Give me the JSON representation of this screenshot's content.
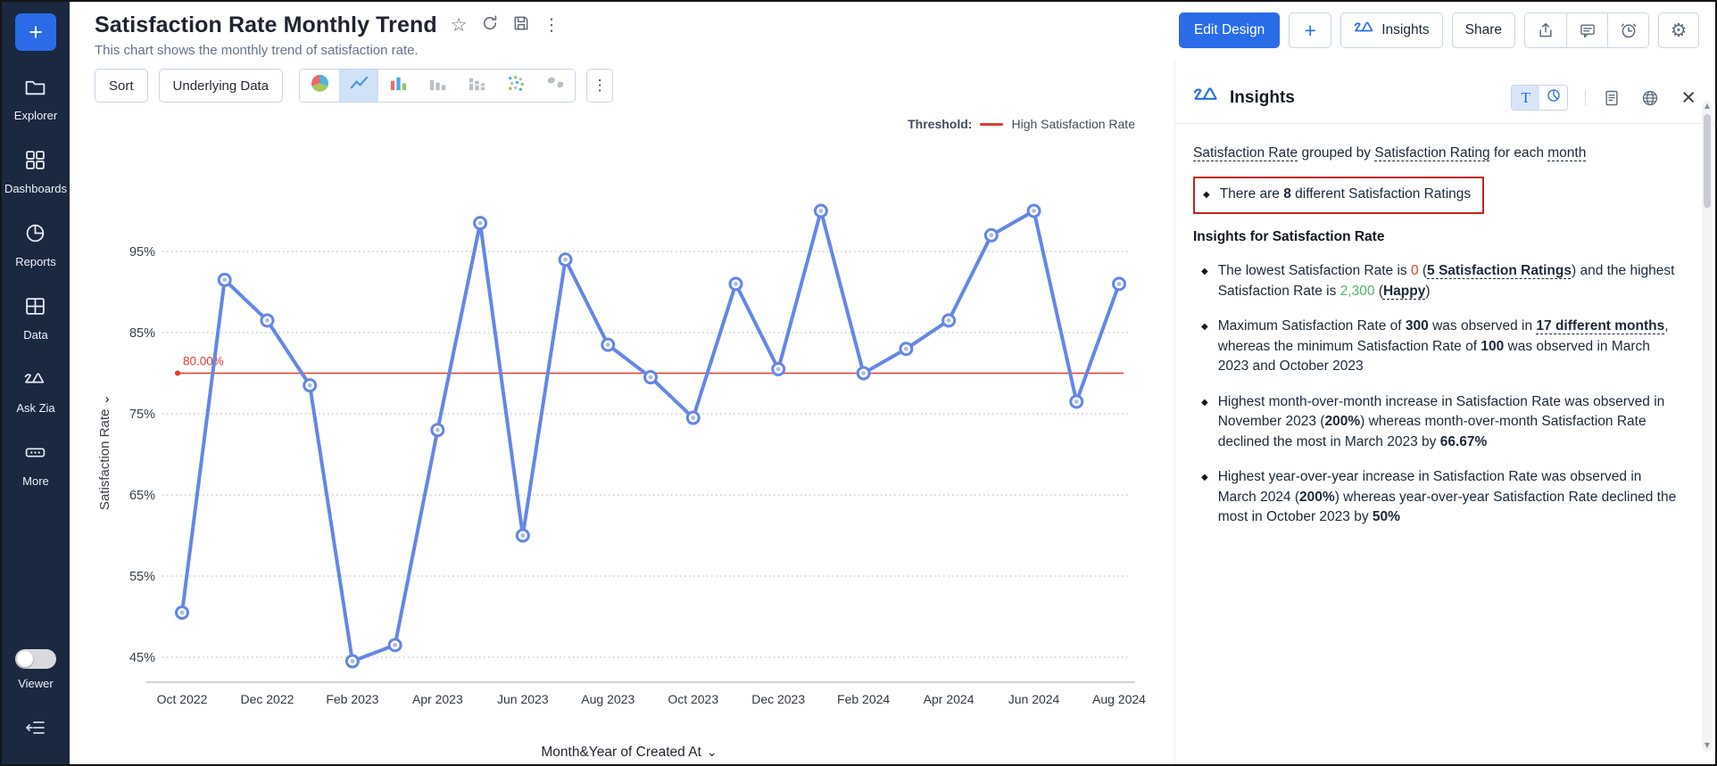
{
  "header": {
    "title": "Satisfaction Rate Monthly Trend",
    "subtitle": "This chart shows the monthly trend of satisfaction rate.",
    "title_icons": [
      "star-icon",
      "refresh-icon",
      "save-icon",
      "kebab-menu-icon"
    ]
  },
  "actions": {
    "edit_design": "Edit Design",
    "add": "+",
    "insights": "Insights",
    "share": "Share",
    "icon_buttons": [
      "export-icon",
      "comment-icon",
      "alarm-icon",
      "gear-icon"
    ]
  },
  "toolbar": {
    "sort": "Sort",
    "underlying_data": "Underlying Data",
    "chart_types": [
      {
        "icon": "pie-chart-icon",
        "selected": false
      },
      {
        "icon": "line-chart-icon",
        "selected": true
      },
      {
        "icon": "bar-chart-color-icon",
        "selected": false
      },
      {
        "icon": "bar-chart-gray-icon",
        "selected": false
      },
      {
        "icon": "stacked-bar-icon",
        "selected": false
      },
      {
        "icon": "scatter-plot-icon",
        "selected": false
      },
      {
        "icon": "map-chart-icon",
        "selected": false
      }
    ],
    "more": "⋮"
  },
  "sidebar": {
    "items": [
      {
        "icon": "folder-icon",
        "label": "Explorer"
      },
      {
        "icon": "dashboards-icon",
        "label": "Dashboards"
      },
      {
        "icon": "reports-icon",
        "label": "Reports"
      },
      {
        "icon": "data-table-icon",
        "label": "Data"
      },
      {
        "icon": "zia-icon",
        "label": "Ask Zia"
      },
      {
        "icon": "more-icon",
        "label": "More"
      }
    ],
    "viewer_label": "Viewer"
  },
  "chart_data": {
    "type": "line",
    "title": "Satisfaction Rate Monthly Trend",
    "x": [
      "Oct 2022",
      "Nov 2022",
      "Dec 2022",
      "Jan 2023",
      "Feb 2023",
      "Mar 2023",
      "Apr 2023",
      "May 2023",
      "Jun 2023",
      "Jul 2023",
      "Aug 2023",
      "Sep 2023",
      "Oct 2023",
      "Nov 2023",
      "Dec 2023",
      "Jan 2024",
      "Feb 2024",
      "Mar 2024",
      "Apr 2024",
      "May 2024",
      "Jun 2024",
      "Jul 2024",
      "Aug 2024"
    ],
    "series": [
      {
        "name": "Satisfaction Rate",
        "values": [
          50.5,
          91.5,
          86.5,
          78.5,
          44.5,
          46.5,
          73,
          98.5,
          60,
          94,
          83.5,
          79.5,
          74.5,
          91,
          80.5,
          100,
          80,
          83,
          86.5,
          97,
          100,
          76.5,
          91
        ]
      }
    ],
    "xlabel": "Month&Year of Created At",
    "ylabel": "Satisfaction Rate",
    "y_ticks": [
      45,
      55,
      65,
      75,
      85,
      95
    ],
    "y_tick_suffix": "%",
    "ylim": [
      41,
      103
    ],
    "x_tick_step": 2,
    "grid": "dotted-horizontal",
    "legend_position": "top-right",
    "line_color": "#6487e7",
    "threshold": {
      "label": "Threshold:",
      "name": "High Satisfaction Rate",
      "value": 80,
      "value_label": "80.00%",
      "color": "#e23b33"
    }
  },
  "insights_panel": {
    "title": "Insights",
    "summary_segments": [
      {
        "t": "Satisfaction Rate",
        "s": "u"
      },
      {
        "t": " grouped by ",
        "s": "p"
      },
      {
        "t": "Satisfaction Rating",
        "s": "u"
      },
      {
        "t": " for each ",
        "s": "p"
      },
      {
        "t": "month",
        "s": "u"
      }
    ],
    "highlight_bullet": [
      {
        "t": "There are ",
        "s": "p"
      },
      {
        "t": "8",
        "s": "b"
      },
      {
        "t": " different Satisfaction Ratings",
        "s": "p"
      }
    ],
    "section_title": "Insights for Satisfaction Rate",
    "bullets": [
      [
        {
          "t": "The lowest Satisfaction Rate is ",
          "s": "p"
        },
        {
          "t": "0",
          "s": "r"
        },
        {
          "t": " (",
          "s": "p"
        },
        {
          "t": "5 Satisfaction Ratings",
          "s": "bu"
        },
        {
          "t": ") and the highest Satisfaction Rate is ",
          "s": "p"
        },
        {
          "t": "2,300",
          "s": "g"
        },
        {
          "t": " (",
          "s": "p"
        },
        {
          "t": "Happy",
          "s": "bu"
        },
        {
          "t": ")",
          "s": "p"
        }
      ],
      [
        {
          "t": "Maximum Satisfaction Rate of ",
          "s": "p"
        },
        {
          "t": "300",
          "s": "b"
        },
        {
          "t": " was observed in ",
          "s": "p"
        },
        {
          "t": "17 different months",
          "s": "bu"
        },
        {
          "t": ", whereas the minimum Satisfaction Rate of ",
          "s": "p"
        },
        {
          "t": "100",
          "s": "b"
        },
        {
          "t": " was observed in March 2023 and October 2023",
          "s": "p"
        }
      ],
      [
        {
          "t": "Highest month-over-month increase in Satisfaction Rate was observed in November 2023 (",
          "s": "p"
        },
        {
          "t": "200%",
          "s": "b"
        },
        {
          "t": ") whereas month-over-month Satisfaction Rate declined the most in March 2023 by ",
          "s": "p"
        },
        {
          "t": "66.67%",
          "s": "b"
        }
      ],
      [
        {
          "t": "Highest year-over-year increase in Satisfaction Rate was observed in March 2024 (",
          "s": "p"
        },
        {
          "t": "200%",
          "s": "b"
        },
        {
          "t": ") whereas year-over-year Satisfaction Rate declined the most in October 2023 by ",
          "s": "p"
        },
        {
          "t": "50%",
          "s": "b"
        }
      ]
    ]
  }
}
